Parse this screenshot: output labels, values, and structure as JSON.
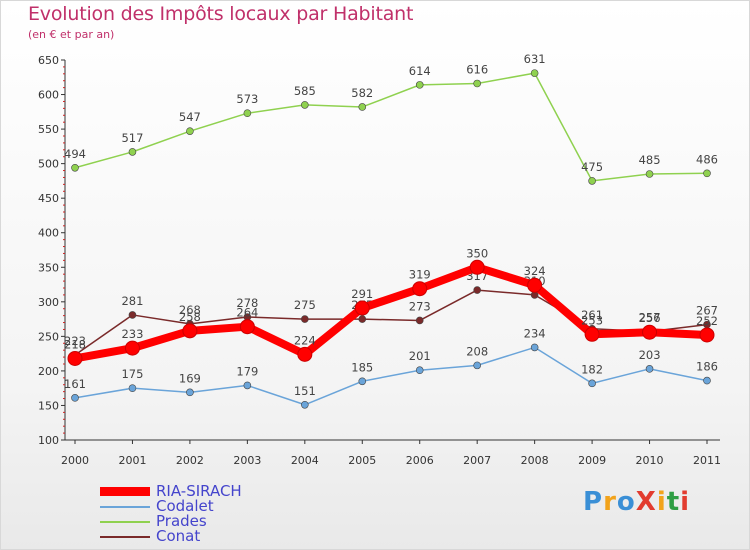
{
  "header": {
    "title": "Evolution des Impôts locaux par Habitant",
    "subtitle": "(en € et par an)"
  },
  "brand": {
    "logo": "ProXiti",
    "colors": [
      "#3a8fd6",
      "#f2a31b",
      "#3a8fd6",
      "#e23c2f",
      "#f2a31b",
      "#2f9e44",
      "#e23c2f"
    ]
  },
  "chart_data": {
    "type": "line",
    "categories": [
      "2000",
      "2001",
      "2002",
      "2003",
      "2004",
      "2005",
      "2006",
      "2007",
      "2008",
      "2009",
      "2010",
      "2011"
    ],
    "ylim": [
      100,
      650
    ],
    "yticks": [
      "100",
      "150",
      "200",
      "250",
      "300",
      "350",
      "400",
      "450",
      "500",
      "550",
      "600",
      "650"
    ],
    "grid": false,
    "legend_position": "bottom-left",
    "series": [
      {
        "name": "RIA-SIRACH",
        "color": "#ff0000",
        "values": [
          218,
          233,
          258,
          264,
          224,
          291,
          319,
          350,
          324,
          253,
          256,
          252
        ]
      },
      {
        "name": "Codalet",
        "color": "#6aa4d9",
        "values": [
          161,
          175,
          169,
          179,
          151,
          185,
          201,
          208,
          234,
          182,
          203,
          186
        ]
      },
      {
        "name": "Prades",
        "color": "#8fd14f",
        "values": [
          494,
          517,
          547,
          573,
          585,
          582,
          614,
          616,
          631,
          475,
          485,
          486
        ]
      },
      {
        "name": "Conat",
        "color": "#7a2a2a",
        "values": [
          223,
          281,
          268,
          278,
          275,
          275,
          273,
          317,
          310,
          261,
          257,
          267
        ]
      }
    ]
  }
}
